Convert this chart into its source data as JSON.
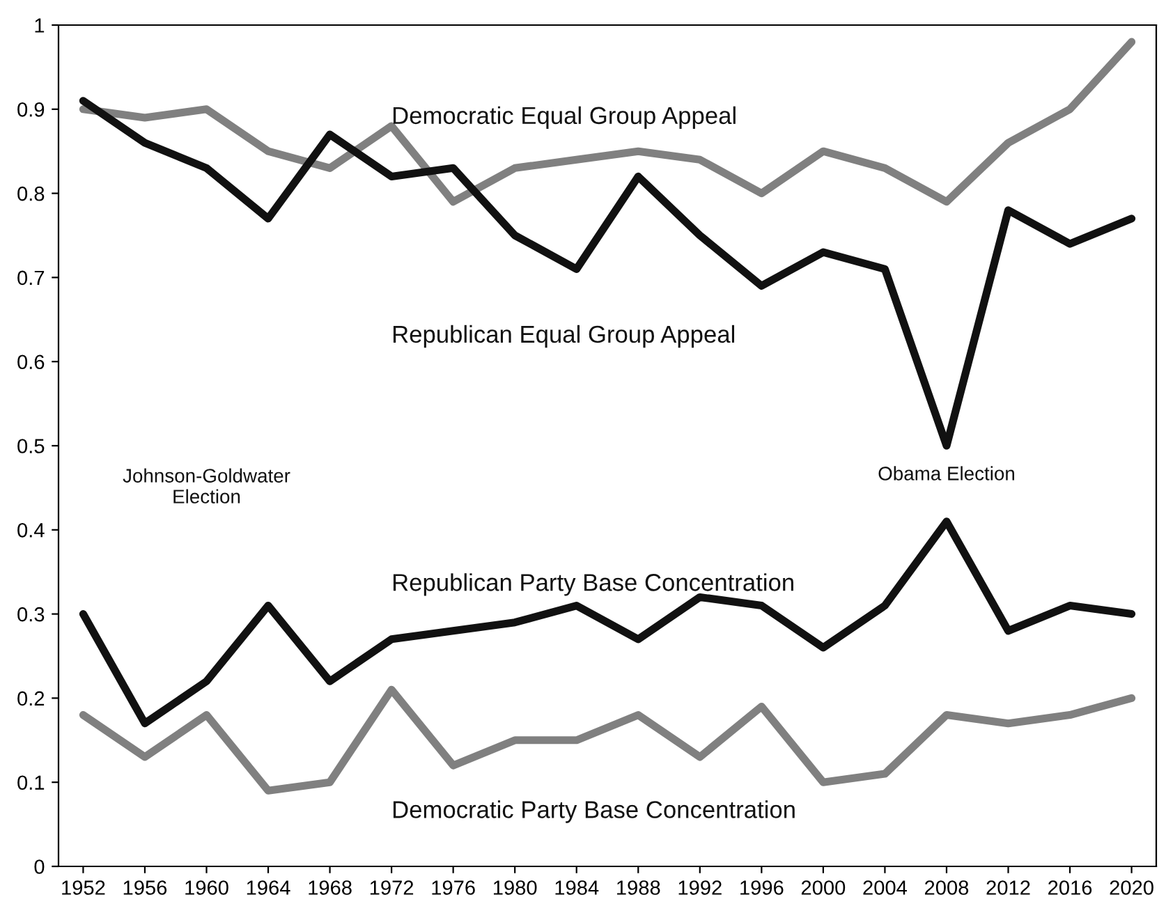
{
  "chart_data": {
    "type": "line",
    "categories": [
      "1952",
      "1956",
      "1960",
      "1964",
      "1968",
      "1972",
      "1976",
      "1980",
      "1984",
      "1988",
      "1992",
      "1996",
      "2000",
      "2004",
      "2008",
      "2012",
      "2016",
      "2020"
    ],
    "series": [
      {
        "name": "Democratic Equal Group Appeal",
        "color": "#808080",
        "values": [
          0.9,
          0.89,
          0.9,
          0.85,
          0.83,
          0.88,
          0.79,
          0.83,
          0.84,
          0.85,
          0.84,
          0.8,
          0.85,
          0.83,
          0.79,
          0.86,
          0.9,
          0.98
        ]
      },
      {
        "name": "Republican Equal Group Appeal",
        "color": "#111111",
        "values": [
          0.91,
          0.86,
          0.83,
          0.77,
          0.87,
          0.82,
          0.83,
          0.75,
          0.71,
          0.82,
          0.75,
          0.69,
          0.73,
          0.71,
          0.5,
          0.78,
          0.74,
          0.77
        ]
      },
      {
        "name": "Republican Party Base Concentration",
        "color": "#111111",
        "values": [
          0.3,
          0.17,
          0.22,
          0.31,
          0.22,
          0.27,
          0.28,
          0.29,
          0.31,
          0.27,
          0.32,
          0.31,
          0.26,
          0.31,
          0.41,
          0.28,
          0.31,
          0.3
        ]
      },
      {
        "name": "Democratic Party Base Concentration",
        "color": "#808080",
        "values": [
          0.18,
          0.13,
          0.18,
          0.09,
          0.1,
          0.21,
          0.12,
          0.15,
          0.15,
          0.18,
          0.13,
          0.19,
          0.1,
          0.11,
          0.18,
          0.17,
          0.18,
          0.2
        ]
      }
    ],
    "annotations": [
      "Johnson-Goldwater\nElection",
      "Obama Election"
    ],
    "ylim": [
      0,
      1
    ],
    "yticks": [
      0,
      0.1,
      0.2,
      0.3,
      0.4,
      0.5,
      0.6,
      0.7,
      0.8,
      0.9,
      1
    ],
    "grid": false,
    "legend": false,
    "marker": "none",
    "line_style": "solid"
  }
}
